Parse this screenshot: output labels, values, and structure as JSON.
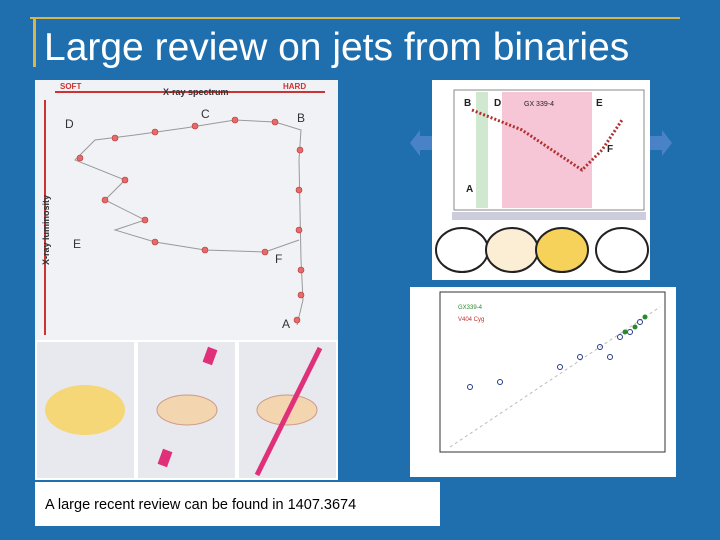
{
  "slide": {
    "title": "Large review on jets from binaries",
    "caption": "A large recent review can be found in 1407.3674",
    "left_figure": {
      "soft": "SOFT",
      "spectrum": "X-ray spectrum",
      "hard": "HARD",
      "y_axis": "X-ray luminosity",
      "labels": [
        "D",
        "C",
        "B",
        "E",
        "F",
        "A"
      ]
    },
    "top_right_figure": {
      "source": "GX 339-4",
      "labels": [
        "B",
        "D",
        "E",
        "F",
        "A"
      ]
    },
    "bottom_right_figure": {
      "legend": [
        "GX339-4",
        "V404 Cyg"
      ]
    }
  }
}
